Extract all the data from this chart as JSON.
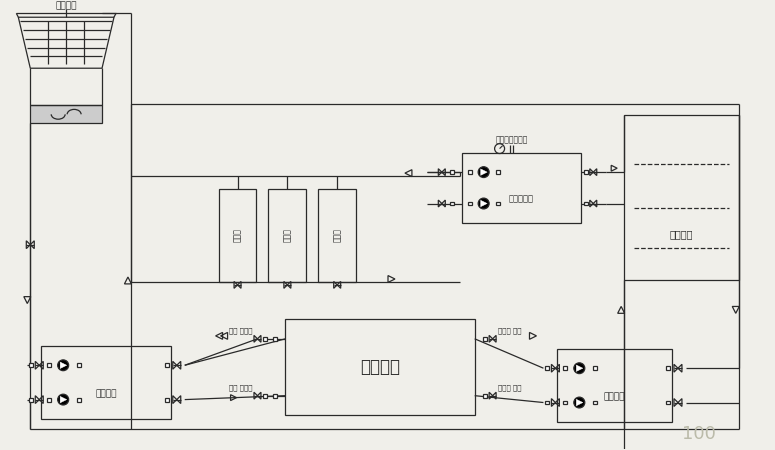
{
  "bg_color": "#f0efea",
  "line_color": "#2a2a2a",
  "labels": {
    "cooling_tower": "冷却水塔",
    "prod_line": "生产线",
    "chiller_unit": "冷冻机组",
    "pressure_pump": "压力输送泵",
    "ice_water_tank": "冰水水筒",
    "cw_pump": "冷却水泵",
    "cold_water_tank": "冷却水筒",
    "pressure_temp": "压力表、温度计",
    "valve_soft1": "阀阀 软接头",
    "soft_valve1": "软接头 阀阀",
    "baidu": "100"
  },
  "figsize": [
    7.75,
    4.5
  ],
  "dpi": 100
}
